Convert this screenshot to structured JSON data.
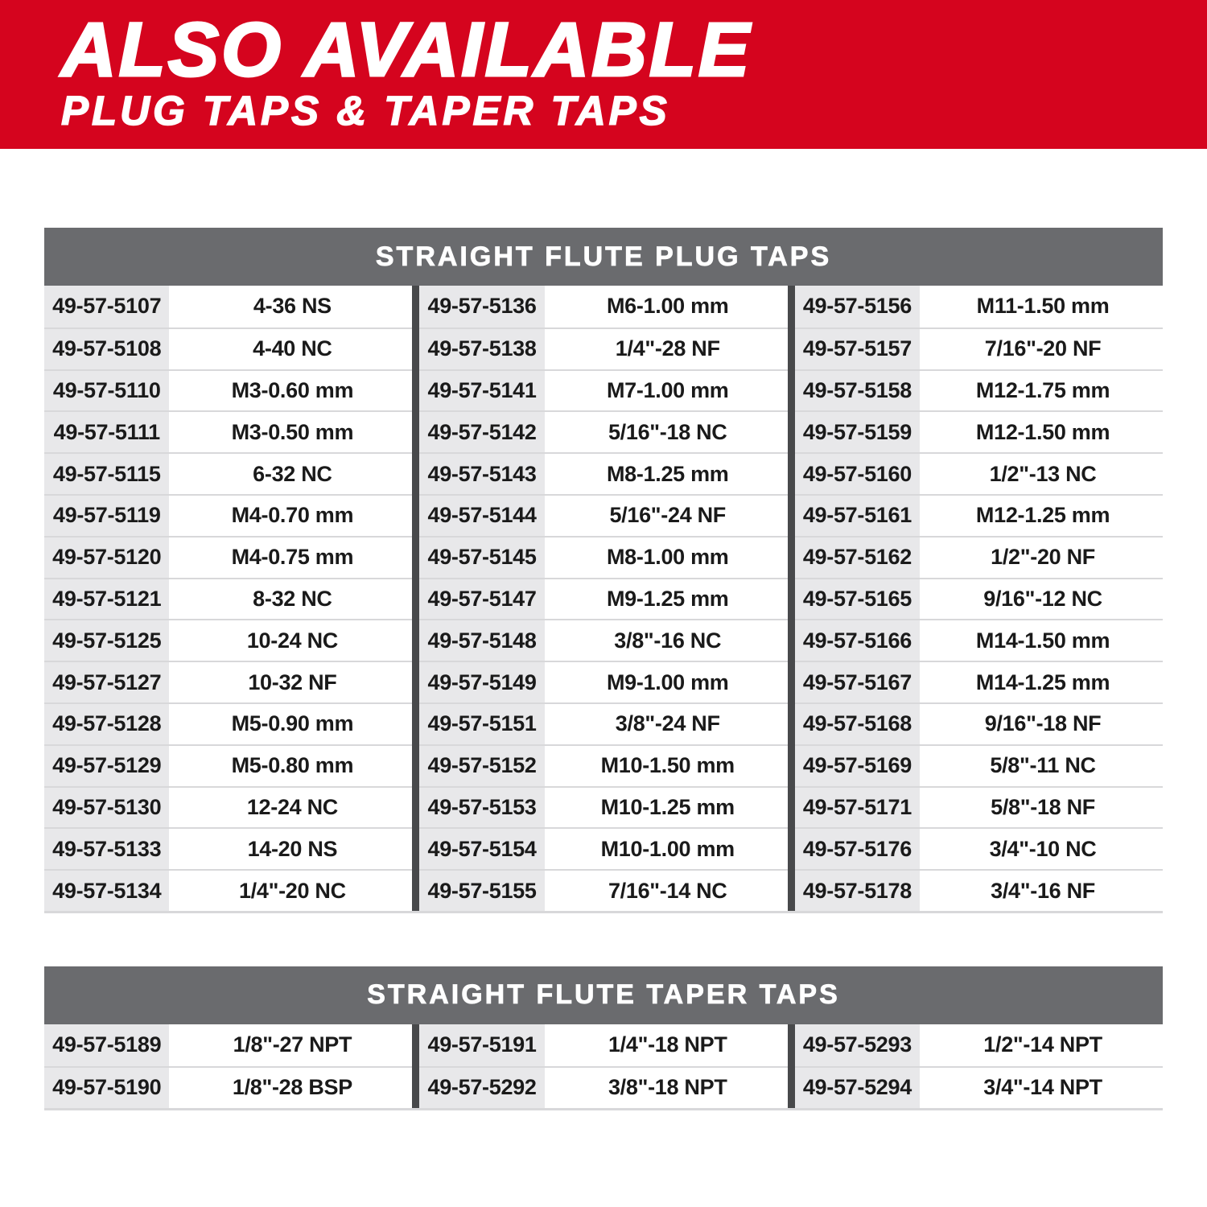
{
  "banner": {
    "title": "ALSO AVAILABLE",
    "subtitle": "PLUG TAPS & TAPER TAPS"
  },
  "colors": {
    "brand_red": "#d5041e",
    "table_header_gray": "#6a6b6e",
    "part_cell_gray": "#e8e8ea",
    "column_divider_gray": "#48494b",
    "row_line_gray": "#d8d8da",
    "text_black": "#1a1a1a"
  },
  "tables": [
    {
      "title": "STRAIGHT FLUTE PLUG TAPS",
      "groups": [
        [
          {
            "part": "49-57-5107",
            "size": "4-36 NS"
          },
          {
            "part": "49-57-5108",
            "size": "4-40 NC"
          },
          {
            "part": "49-57-5110",
            "size": "M3-0.60 mm"
          },
          {
            "part": "49-57-5111",
            "size": "M3-0.50 mm"
          },
          {
            "part": "49-57-5115",
            "size": "6-32 NC"
          },
          {
            "part": "49-57-5119",
            "size": "M4-0.70 mm"
          },
          {
            "part": "49-57-5120",
            "size": "M4-0.75 mm"
          },
          {
            "part": "49-57-5121",
            "size": "8-32 NC"
          },
          {
            "part": "49-57-5125",
            "size": "10-24 NC"
          },
          {
            "part": "49-57-5127",
            "size": "10-32 NF"
          },
          {
            "part": "49-57-5128",
            "size": "M5-0.90 mm"
          },
          {
            "part": "49-57-5129",
            "size": "M5-0.80 mm"
          },
          {
            "part": "49-57-5130",
            "size": "12-24 NC"
          },
          {
            "part": "49-57-5133",
            "size": "14-20 NS"
          },
          {
            "part": "49-57-5134",
            "size": "1/4\"-20 NC"
          }
        ],
        [
          {
            "part": "49-57-5136",
            "size": "M6-1.00 mm"
          },
          {
            "part": "49-57-5138",
            "size": "1/4\"-28 NF"
          },
          {
            "part": "49-57-5141",
            "size": "M7-1.00 mm"
          },
          {
            "part": "49-57-5142",
            "size": "5/16\"-18 NC"
          },
          {
            "part": "49-57-5143",
            "size": "M8-1.25 mm"
          },
          {
            "part": "49-57-5144",
            "size": "5/16\"-24 NF"
          },
          {
            "part": "49-57-5145",
            "size": "M8-1.00 mm"
          },
          {
            "part": "49-57-5147",
            "size": "M9-1.25 mm"
          },
          {
            "part": "49-57-5148",
            "size": "3/8\"-16 NC"
          },
          {
            "part": "49-57-5149",
            "size": "M9-1.00 mm"
          },
          {
            "part": "49-57-5151",
            "size": "3/8\"-24 NF"
          },
          {
            "part": "49-57-5152",
            "size": "M10-1.50 mm"
          },
          {
            "part": "49-57-5153",
            "size": "M10-1.25 mm"
          },
          {
            "part": "49-57-5154",
            "size": "M10-1.00 mm"
          },
          {
            "part": "49-57-5155",
            "size": "7/16\"-14 NC"
          }
        ],
        [
          {
            "part": "49-57-5156",
            "size": "M11-1.50 mm"
          },
          {
            "part": "49-57-5157",
            "size": "7/16\"-20 NF"
          },
          {
            "part": "49-57-5158",
            "size": "M12-1.75 mm"
          },
          {
            "part": "49-57-5159",
            "size": "M12-1.50 mm"
          },
          {
            "part": "49-57-5160",
            "size": "1/2\"-13 NC"
          },
          {
            "part": "49-57-5161",
            "size": "M12-1.25 mm"
          },
          {
            "part": "49-57-5162",
            "size": "1/2\"-20 NF"
          },
          {
            "part": "49-57-5165",
            "size": "9/16\"-12 NC"
          },
          {
            "part": "49-57-5166",
            "size": "M14-1.50 mm"
          },
          {
            "part": "49-57-5167",
            "size": "M14-1.25 mm"
          },
          {
            "part": "49-57-5168",
            "size": "9/16\"-18 NF"
          },
          {
            "part": "49-57-5169",
            "size": "5/8\"-11 NC"
          },
          {
            "part": "49-57-5171",
            "size": "5/8\"-18 NF"
          },
          {
            "part": "49-57-5176",
            "size": "3/4\"-10 NC"
          },
          {
            "part": "49-57-5178",
            "size": "3/4\"-16 NF"
          }
        ]
      ]
    },
    {
      "title": "STRAIGHT FLUTE TAPER TAPS",
      "groups": [
        [
          {
            "part": "49-57-5189",
            "size": "1/8\"-27 NPT"
          },
          {
            "part": "49-57-5190",
            "size": "1/8\"-28 BSP"
          }
        ],
        [
          {
            "part": "49-57-5191",
            "size": "1/4\"-18 NPT"
          },
          {
            "part": "49-57-5292",
            "size": "3/8\"-18 NPT"
          }
        ],
        [
          {
            "part": "49-57-5293",
            "size": "1/2\"-14 NPT"
          },
          {
            "part": "49-57-5294",
            "size": "3/4\"-14 NPT"
          }
        ]
      ]
    }
  ]
}
